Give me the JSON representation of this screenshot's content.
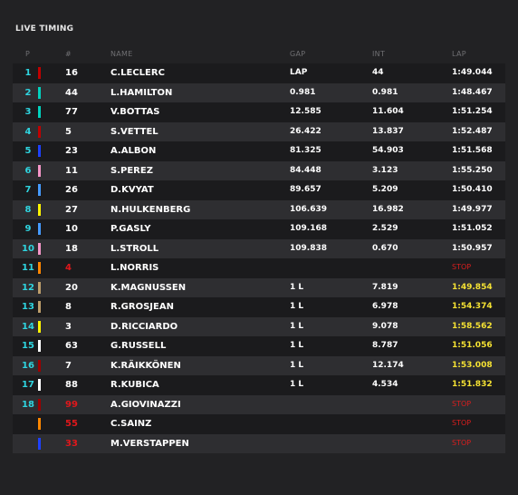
{
  "title": "LIVE TIMING",
  "headers": {
    "pos": "P",
    "num": "#",
    "name": "NAME",
    "gap": "GAP",
    "int": "INT",
    "lap": "LAP"
  },
  "rows": [
    {
      "pos": "1",
      "color": "#c00000",
      "num": "16",
      "num_red": false,
      "name": "C.LECLERC",
      "gap": "LAP",
      "int": "44",
      "lap": "1:49.044",
      "lap_style": "white"
    },
    {
      "pos": "2",
      "color": "#00d2be",
      "num": "44",
      "num_red": false,
      "name": "L.HAMILTON",
      "gap": "0.981",
      "int": "0.981",
      "lap": "1:48.467",
      "lap_style": "white"
    },
    {
      "pos": "3",
      "color": "#00d2be",
      "num": "77",
      "num_red": false,
      "name": "V.BOTTAS",
      "gap": "12.585",
      "int": "11.604",
      "lap": "1:51.254",
      "lap_style": "white"
    },
    {
      "pos": "4",
      "color": "#c00000",
      "num": "5",
      "num_red": false,
      "name": "S.VETTEL",
      "gap": "26.422",
      "int": "13.837",
      "lap": "1:52.487",
      "lap_style": "white"
    },
    {
      "pos": "5",
      "color": "#1e41ff",
      "num": "23",
      "num_red": false,
      "name": "A.ALBON",
      "gap": "81.325",
      "int": "54.903",
      "lap": "1:51.568",
      "lap_style": "white"
    },
    {
      "pos": "6",
      "color": "#f596c8",
      "num": "11",
      "num_red": false,
      "name": "S.PEREZ",
      "gap": "84.448",
      "int": "3.123",
      "lap": "1:55.250",
      "lap_style": "white"
    },
    {
      "pos": "7",
      "color": "#469bff",
      "num": "26",
      "num_red": false,
      "name": "D.KVYAT",
      "gap": "89.657",
      "int": "5.209",
      "lap": "1:50.410",
      "lap_style": "white"
    },
    {
      "pos": "8",
      "color": "#fff500",
      "num": "27",
      "num_red": false,
      "name": "N.HULKENBERG",
      "gap": "106.639",
      "int": "16.982",
      "lap": "1:49.977",
      "lap_style": "white"
    },
    {
      "pos": "9",
      "color": "#469bff",
      "num": "10",
      "num_red": false,
      "name": "P.GASLY",
      "gap": "109.168",
      "int": "2.529",
      "lap": "1:51.052",
      "lap_style": "white"
    },
    {
      "pos": "10",
      "color": "#f596c8",
      "num": "18",
      "num_red": false,
      "name": "L.STROLL",
      "gap": "109.838",
      "int": "0.670",
      "lap": "1:50.957",
      "lap_style": "white"
    },
    {
      "pos": "11",
      "color": "#ff8700",
      "num": "4",
      "num_red": true,
      "name": "L.NORRIS",
      "gap": "",
      "int": "",
      "lap": "STOP",
      "lap_style": "stop"
    },
    {
      "pos": "12",
      "color": "#bd9e6b",
      "num": "20",
      "num_red": false,
      "name": "K.MAGNUSSEN",
      "gap": "1 L",
      "int": "7.819",
      "lap": "1:49.854",
      "lap_style": "yellow"
    },
    {
      "pos": "13",
      "color": "#bd9e6b",
      "num": "8",
      "num_red": false,
      "name": "R.GROSJEAN",
      "gap": "1 L",
      "int": "6.978",
      "lap": "1:54.374",
      "lap_style": "yellow"
    },
    {
      "pos": "14",
      "color": "#fff500",
      "num": "3",
      "num_red": false,
      "name": "D.RICCIARDO",
      "gap": "1 L",
      "int": "9.078",
      "lap": "1:58.562",
      "lap_style": "yellow"
    },
    {
      "pos": "15",
      "color": "#ffffff",
      "num": "63",
      "num_red": false,
      "name": "G.RUSSELL",
      "gap": "1 L",
      "int": "8.787",
      "lap": "1:51.056",
      "lap_style": "yellow"
    },
    {
      "pos": "16",
      "color": "#9b0000",
      "num": "7",
      "num_red": false,
      "name": "K.RÄIKKÖNEN",
      "gap": "1 L",
      "int": "12.174",
      "lap": "1:53.008",
      "lap_style": "yellow"
    },
    {
      "pos": "17",
      "color": "#ffffff",
      "num": "88",
      "num_red": false,
      "name": "R.KUBICA",
      "gap": "1 L",
      "int": "4.534",
      "lap": "1:51.832",
      "lap_style": "yellow"
    },
    {
      "pos": "18",
      "color": "#9b0000",
      "num": "99",
      "num_red": true,
      "name": "A.GIOVINAZZI",
      "gap": "",
      "int": "",
      "lap": "STOP",
      "lap_style": "stop"
    },
    {
      "pos": "",
      "color": "#ff8700",
      "num": "55",
      "num_red": true,
      "name": "C.SAINZ",
      "gap": "",
      "int": "",
      "lap": "STOP",
      "lap_style": "stop"
    },
    {
      "pos": "",
      "color": "#1e41ff",
      "num": "33",
      "num_red": true,
      "name": "M.VERSTAPPEN",
      "gap": "",
      "int": "",
      "lap": "STOP",
      "lap_style": "stop"
    }
  ]
}
